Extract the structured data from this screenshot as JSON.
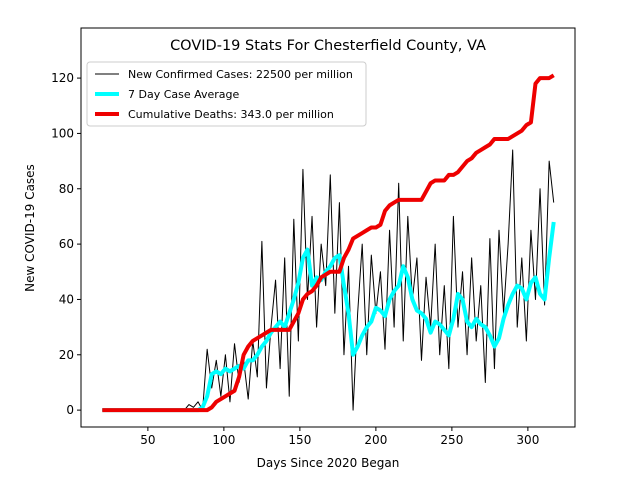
{
  "chart_data": {
    "type": "line",
    "title": "COVID-19 Stats For Chesterfield County, VA",
    "xlabel": "Days Since 2020 Began",
    "ylabel": "New COVID-19 Cases",
    "x": [
      20,
      23,
      26,
      29,
      32,
      35,
      38,
      41,
      44,
      47,
      50,
      53,
      56,
      59,
      62,
      65,
      68,
      71,
      74,
      77,
      80,
      83,
      86,
      89,
      92,
      95,
      98,
      101,
      104,
      107,
      110,
      113,
      116,
      119,
      122,
      125,
      128,
      131,
      134,
      137,
      140,
      143,
      146,
      149,
      152,
      155,
      158,
      161,
      164,
      167,
      170,
      173,
      176,
      179,
      182,
      185,
      188,
      191,
      194,
      197,
      200,
      203,
      206,
      209,
      212,
      215,
      218,
      221,
      224,
      227,
      230,
      233,
      236,
      239,
      242,
      245,
      248,
      251,
      254,
      257,
      260,
      263,
      266,
      269,
      272,
      275,
      278,
      281,
      284,
      287,
      290,
      293,
      296,
      299,
      302,
      305,
      308,
      311,
      314,
      317
    ],
    "series": [
      {
        "name": "New Confirmed Cases: 22500 per million",
        "color": "#000000",
        "width": 1,
        "values": [
          0,
          0,
          0,
          0,
          0,
          0,
          0,
          0,
          0,
          0,
          0,
          0,
          0,
          0,
          0,
          0,
          0,
          0,
          0,
          2,
          1,
          3,
          0,
          22,
          8,
          18,
          5,
          20,
          3,
          24,
          10,
          18,
          4,
          25,
          12,
          61,
          8,
          30,
          47,
          15,
          55,
          5,
          69,
          25,
          87,
          40,
          70,
          30,
          60,
          45,
          85,
          35,
          75,
          20,
          52,
          0,
          35,
          60,
          20,
          56,
          35,
          50,
          22,
          65,
          30,
          82,
          25,
          70,
          40,
          55,
          18,
          48,
          30,
          60,
          20,
          45,
          15,
          70,
          30,
          50,
          20,
          55,
          25,
          45,
          10,
          62,
          15,
          65,
          35,
          60,
          94,
          30,
          55,
          25,
          65,
          40,
          80,
          38,
          90,
          75
        ]
      },
      {
        "name": "7 Day Case Average",
        "color": "#00ffff",
        "width": 4,
        "values": [
          0,
          0,
          0,
          0,
          0,
          0,
          0,
          0,
          0,
          0,
          0,
          0,
          0,
          0,
          0,
          0,
          0,
          0,
          0,
          0,
          0,
          0,
          1,
          5,
          13,
          14,
          13,
          15,
          14,
          15,
          16,
          15,
          18,
          18,
          20,
          23,
          25,
          28,
          30,
          32,
          30,
          35,
          40,
          46,
          55,
          58,
          45,
          48,
          47,
          50,
          52,
          55,
          56,
          45,
          35,
          20,
          23,
          27,
          30,
          32,
          37,
          36,
          34,
          40,
          43,
          45,
          52,
          48,
          40,
          36,
          35,
          33,
          28,
          32,
          31,
          29,
          27,
          33,
          42,
          40,
          32,
          30,
          33,
          31,
          30,
          27,
          23,
          26,
          33,
          38,
          42,
          45,
          44,
          40,
          46,
          48,
          42,
          40,
          55,
          68
        ]
      },
      {
        "name": "Cumulative Deaths: 343.0 per million",
        "color": "#ee0000",
        "width": 4,
        "values": [
          0,
          0,
          0,
          0,
          0,
          0,
          0,
          0,
          0,
          0,
          0,
          0,
          0,
          0,
          0,
          0,
          0,
          0,
          0,
          0,
          0,
          0,
          0,
          0,
          1,
          3,
          4,
          5,
          6,
          7,
          12,
          20,
          23,
          25,
          26,
          27,
          28,
          29,
          29,
          29,
          29,
          29,
          32,
          35,
          40,
          42,
          43,
          45,
          48,
          49,
          50,
          50,
          50,
          55,
          58,
          62,
          63,
          64,
          65,
          66,
          66,
          67,
          72,
          74,
          75,
          76,
          76,
          76,
          76,
          76,
          76,
          79,
          82,
          83,
          83,
          83,
          85,
          85,
          86,
          88,
          90,
          91,
          93,
          94,
          95,
          96,
          98,
          98,
          98,
          98,
          99,
          100,
          101,
          103,
          104,
          118,
          120,
          120,
          120,
          121
        ]
      }
    ],
    "xlim": [
      6,
      331
    ],
    "ylim": [
      -6.1,
      138.1
    ],
    "xticks": [
      50,
      100,
      150,
      200,
      250,
      300
    ],
    "yticks": [
      0,
      20,
      40,
      60,
      80,
      100,
      120
    ],
    "legend": "upper left"
  }
}
